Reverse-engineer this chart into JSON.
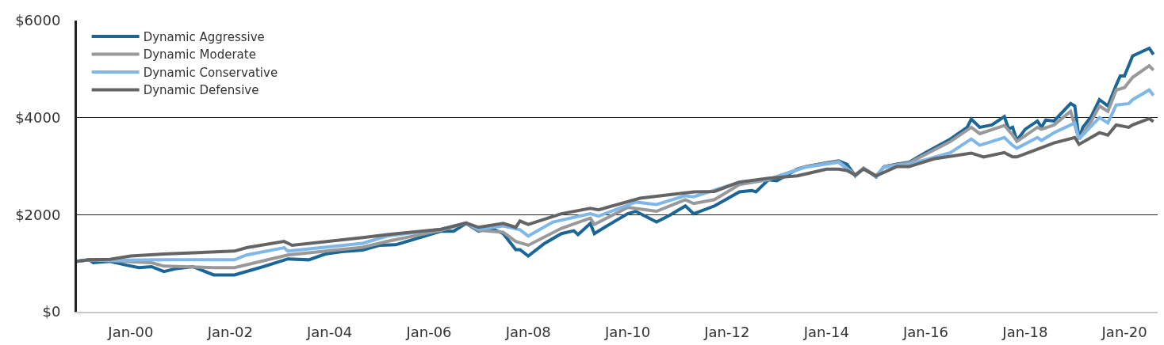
{
  "chart_data": {
    "type": "line",
    "xlim": [
      "1998-12",
      "2020-09"
    ],
    "xticks": [
      {
        "value": "2000-01",
        "label": "Jan-00"
      },
      {
        "value": "2002-01",
        "label": "Jan-02"
      },
      {
        "value": "2004-01",
        "label": "Jan-04"
      },
      {
        "value": "2006-01",
        "label": "Jan-06"
      },
      {
        "value": "2008-01",
        "label": "Jan-08"
      },
      {
        "value": "2010-01",
        "label": "Jan-10"
      },
      {
        "value": "2012-01",
        "label": "Jan-12"
      },
      {
        "value": "2014-01",
        "label": "Jan-14"
      },
      {
        "value": "2016-01",
        "label": "Jan-16"
      },
      {
        "value": "2018-01",
        "label": "Jan-18"
      },
      {
        "value": "2020-01",
        "label": "Jan-20"
      }
    ],
    "ylim": [
      0,
      6000
    ],
    "yticks": [
      {
        "value": 0,
        "label": "$0"
      },
      {
        "value": 2000,
        "label": "$2000"
      },
      {
        "value": 4000,
        "label": "$4000"
      },
      {
        "value": 6000,
        "label": "$6000"
      }
    ],
    "grid": "y",
    "legend": "top left",
    "marker": "none",
    "line_style": "solid",
    "series": [
      {
        "name": "Dynamic Aggressive",
        "color": "#1a6696",
        "x": [
          "1998-12",
          "1999-03",
          "1999-04",
          "1999-08",
          "1999-12",
          "2000-03",
          "2000-06",
          "2000-09",
          "2000-12",
          "2001-04",
          "2001-09",
          "2002-02",
          "2002-09",
          "2003-03",
          "2003-08",
          "2003-12",
          "2004-04",
          "2004-09",
          "2005-01",
          "2005-05",
          "2006-04",
          "2006-07",
          "2006-10",
          "2007-01",
          "2007-04",
          "2007-07",
          "2007-10",
          "2007-11",
          "2008-01",
          "2008-05",
          "2008-09",
          "2008-12",
          "2009-01",
          "2009-04",
          "2009-05",
          "2009-09",
          "2010-01",
          "2010-03",
          "2010-08",
          "2010-11",
          "2011-03",
          "2011-05",
          "2011-10",
          "2012-04",
          "2012-07",
          "2012-08",
          "2012-11",
          "2013-01",
          "2013-06",
          "2013-08",
          "2014-01",
          "2014-04",
          "2014-06",
          "2014-08",
          "2014-10",
          "2015-01",
          "2015-03",
          "2015-06",
          "2015-09",
          "2016-01",
          "2016-07",
          "2016-11",
          "2016-12",
          "2017-02",
          "2017-05",
          "2017-08",
          "2017-09",
          "2017-10",
          "2017-11",
          "2018-01",
          "2018-04",
          "2018-05",
          "2018-06",
          "2018-08",
          "2018-12",
          "2019-01",
          "2019-02",
          "2019-03",
          "2019-05",
          "2019-07",
          "2019-09",
          "2019-11",
          "2019-12",
          "2020-01",
          "2020-02",
          "2020-03",
          "2020-07",
          "2020-08"
        ],
        "values": [
          1040,
          1070,
          1010,
          1040,
          960,
          910,
          930,
          830,
          890,
          930,
          760,
          760,
          930,
          1090,
          1070,
          1190,
          1240,
          1270,
          1370,
          1380,
          1660,
          1660,
          1820,
          1660,
          1720,
          1610,
          1280,
          1280,
          1150,
          1410,
          1610,
          1670,
          1590,
          1820,
          1610,
          1820,
          2020,
          2070,
          1850,
          1980,
          2180,
          2020,
          2180,
          2470,
          2500,
          2470,
          2720,
          2700,
          2940,
          2990,
          3070,
          3110,
          3040,
          2800,
          2960,
          2780,
          2990,
          3040,
          3080,
          3280,
          3560,
          3800,
          3970,
          3800,
          3850,
          4020,
          3770,
          3800,
          3530,
          3760,
          3930,
          3800,
          3950,
          3930,
          4290,
          4240,
          3560,
          3800,
          4020,
          4370,
          4240,
          4670,
          4860,
          4860,
          5070,
          5270,
          5430,
          5300
        ]
      },
      {
        "name": "Dynamic Moderate",
        "color": "#999999",
        "x": [
          "1998-12",
          "1999-03",
          "1999-08",
          "2000-06",
          "2000-09",
          "2001-09",
          "2002-02",
          "2003-03",
          "2004-09",
          "2005-03",
          "2006-04",
          "2006-10",
          "2007-01",
          "2007-07",
          "2007-10",
          "2008-01",
          "2008-09",
          "2009-04",
          "2009-05",
          "2010-01",
          "2010-08",
          "2011-03",
          "2011-05",
          "2011-10",
          "2012-04",
          "2012-11",
          "2013-08",
          "2014-04",
          "2014-08",
          "2014-10",
          "2015-01",
          "2015-03",
          "2015-09",
          "2016-07",
          "2016-12",
          "2017-02",
          "2017-08",
          "2017-10",
          "2017-11",
          "2018-04",
          "2018-05",
          "2018-08",
          "2018-12",
          "2019-02",
          "2019-05",
          "2019-07",
          "2019-09",
          "2019-11",
          "2020-01",
          "2020-03",
          "2020-07",
          "2020-08"
        ],
        "values": [
          1040,
          1070,
          1050,
          1010,
          940,
          910,
          910,
          1170,
          1330,
          1450,
          1680,
          1830,
          1680,
          1640,
          1450,
          1370,
          1720,
          1930,
          1800,
          2150,
          2070,
          2310,
          2230,
          2310,
          2620,
          2720,
          2990,
          3100,
          2820,
          2960,
          2800,
          2990,
          3070,
          3510,
          3800,
          3670,
          3840,
          3640,
          3510,
          3800,
          3760,
          3850,
          4130,
          3560,
          3920,
          4240,
          4130,
          4570,
          4620,
          4830,
          5070,
          4980
        ]
      },
      {
        "name": "Dynamic Conservative",
        "color": "#7fb8e8",
        "x": [
          "1998-12",
          "1999-03",
          "1999-08",
          "2000-09",
          "2001-09",
          "2002-02",
          "2002-05",
          "2003-02",
          "2003-03",
          "2004-09",
          "2005-03",
          "2006-04",
          "2006-10",
          "2007-01",
          "2007-07",
          "2007-11",
          "2008-01",
          "2008-07",
          "2009-04",
          "2009-06",
          "2010-03",
          "2010-08",
          "2011-03",
          "2011-05",
          "2012-04",
          "2012-11",
          "2013-08",
          "2014-04",
          "2014-08",
          "2014-10",
          "2015-01",
          "2015-03",
          "2015-09",
          "2016-07",
          "2016-12",
          "2017-02",
          "2017-08",
          "2017-10",
          "2017-11",
          "2018-04",
          "2018-05",
          "2018-08",
          "2019-01",
          "2019-02",
          "2019-07",
          "2019-09",
          "2019-11",
          "2020-02",
          "2020-03",
          "2020-07",
          "2020-08"
        ],
        "values": [
          1040,
          1070,
          1060,
          1070,
          1070,
          1070,
          1170,
          1320,
          1250,
          1410,
          1560,
          1700,
          1830,
          1700,
          1770,
          1690,
          1560,
          1850,
          2020,
          1970,
          2260,
          2210,
          2390,
          2370,
          2670,
          2730,
          2980,
          3080,
          2810,
          2950,
          2790,
          2980,
          3040,
          3280,
          3560,
          3430,
          3590,
          3430,
          3370,
          3590,
          3530,
          3690,
          3890,
          3560,
          4000,
          3890,
          4260,
          4290,
          4370,
          4570,
          4460
        ]
      },
      {
        "name": "Dynamic Defensive",
        "color": "#646464",
        "x": [
          "1998-12",
          "1999-03",
          "1999-08",
          "2000-01",
          "2000-09",
          "2002-02",
          "2002-05",
          "2003-02",
          "2003-04",
          "2004-09",
          "2005-03",
          "2006-04",
          "2006-10",
          "2007-01",
          "2007-07",
          "2007-10",
          "2007-11",
          "2008-01",
          "2008-09",
          "2009-04",
          "2009-06",
          "2010-04",
          "2011-05",
          "2011-10",
          "2012-04",
          "2012-11",
          "2013-06",
          "2014-01",
          "2014-04",
          "2014-06",
          "2014-08",
          "2014-10",
          "2015-01",
          "2015-06",
          "2015-09",
          "2016-03",
          "2016-12",
          "2017-03",
          "2017-08",
          "2017-10",
          "2017-11",
          "2018-04",
          "2018-08",
          "2019-01",
          "2019-02",
          "2019-07",
          "2019-09",
          "2019-11",
          "2020-02",
          "2020-03",
          "2020-07",
          "2020-08"
        ],
        "values": [
          1040,
          1070,
          1080,
          1150,
          1190,
          1250,
          1320,
          1450,
          1370,
          1530,
          1590,
          1700,
          1830,
          1740,
          1820,
          1740,
          1870,
          1800,
          2020,
          2130,
          2100,
          2340,
          2470,
          2480,
          2670,
          2750,
          2800,
          2940,
          2940,
          2910,
          2820,
          2940,
          2800,
          2990,
          2990,
          3150,
          3270,
          3190,
          3280,
          3190,
          3190,
          3350,
          3480,
          3590,
          3450,
          3690,
          3640,
          3850,
          3800,
          3850,
          3980,
          3920
        ]
      }
    ]
  }
}
